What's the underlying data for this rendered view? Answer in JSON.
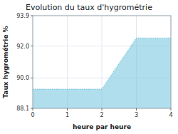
{
  "chart_data": {
    "type": "area",
    "title": "Evolution du taux d'hygrométrie",
    "x_label": "heure par heure",
    "y_label": "Taux hygrométrie %",
    "x": [
      0,
      1,
      2,
      3,
      4
    ],
    "values": [
      89.3,
      89.3,
      89.3,
      92.5,
      92.5
    ],
    "color": "#7cc8e0",
    "line_style": "dotted",
    "xlim": [
      0,
      4
    ],
    "ylim": [
      88.1,
      93.9
    ],
    "xticks": [
      0,
      1,
      2,
      3,
      4
    ],
    "yticks": [
      88.1,
      {
        "value": 90,
        "label": "90.0"
      },
      {
        "value": 92,
        "label": "92.0"
      },
      93.9
    ],
    "grid": true
  }
}
